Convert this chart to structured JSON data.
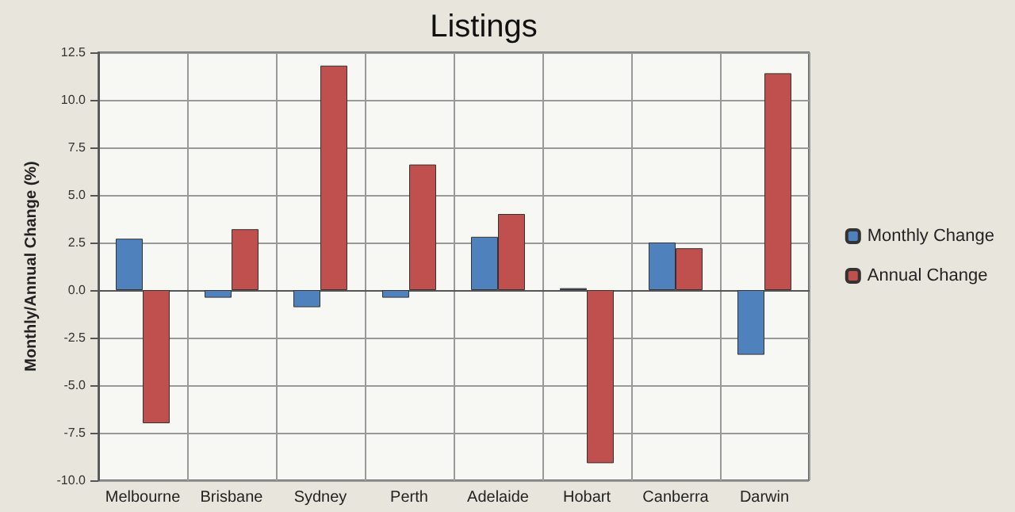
{
  "chart_data": {
    "type": "bar",
    "title": "Listings",
    "ylabel": "Monthly/Annual Change (%)",
    "categories": [
      "Melbourne",
      "Brisbane",
      "Sydney",
      "Perth",
      "Adelaide",
      "Hobart",
      "Canberra",
      "Darwin"
    ],
    "series": [
      {
        "name": "Monthly Change",
        "color": "#4f81bd",
        "values": [
          2.7,
          -0.4,
          -0.9,
          -0.4,
          2.8,
          0.1,
          2.5,
          -3.4
        ]
      },
      {
        "name": "Annual Change",
        "color": "#c0504d",
        "values": [
          -7.0,
          3.2,
          11.8,
          6.6,
          4.0,
          -9.1,
          2.2,
          11.4
        ]
      }
    ],
    "ylim": [
      -10,
      12.5
    ],
    "yticks": [
      {
        "value": -10,
        "label": "-10.0"
      },
      {
        "value": -7.5,
        "label": "-7.5"
      },
      {
        "value": -5,
        "label": "-5.0"
      },
      {
        "value": -2.5,
        "label": "-2.5"
      },
      {
        "value": 0,
        "label": "0.0"
      },
      {
        "value": 2.5,
        "label": "2.5"
      },
      {
        "value": 5,
        "label": "5.0"
      },
      {
        "value": 7.5,
        "label": "7.5"
      },
      {
        "value": 10,
        "label": "10.0"
      },
      {
        "value": 12.5,
        "label": "12.5"
      }
    ],
    "grid": true,
    "legend": "right"
  }
}
